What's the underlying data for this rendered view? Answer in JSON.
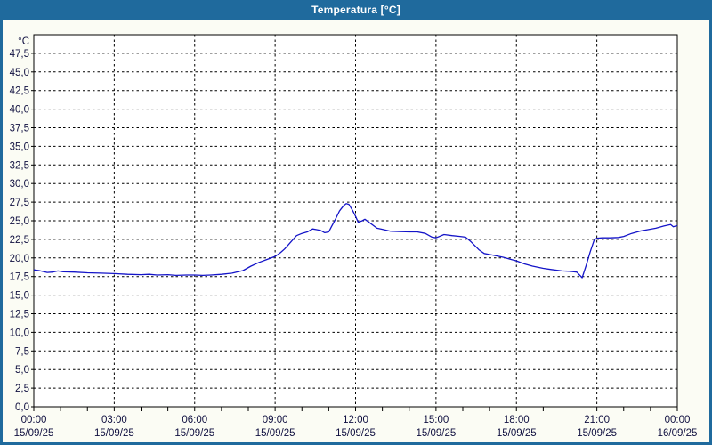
{
  "window": {
    "title": "Temperatura [°C]"
  },
  "colors": {
    "titlebar": "#1f6a9d",
    "frame": "#1f6a9d",
    "background": "#fbfcf4",
    "plot_background": "#ffffff",
    "plot_border": "#000000",
    "gridline": "#000000",
    "axis_text": "#101040",
    "title_text": "#ffffff",
    "series_line": "#1414c8"
  },
  "chart_data": {
    "type": "line",
    "title": "Temperatura [°C]",
    "y_axis": {
      "unit_label": "°C",
      "ylim": [
        0,
        50
      ],
      "tick_step": 2.5,
      "ticks": [
        {
          "value": 0.0,
          "label": "0,0"
        },
        {
          "value": 2.5,
          "label": "2,5"
        },
        {
          "value": 5.0,
          "label": "5,0"
        },
        {
          "value": 7.5,
          "label": "7,5"
        },
        {
          "value": 10.0,
          "label": "10,0"
        },
        {
          "value": 12.5,
          "label": "12,5"
        },
        {
          "value": 15.0,
          "label": "15,0"
        },
        {
          "value": 17.5,
          "label": "17,5"
        },
        {
          "value": 20.0,
          "label": "20,0"
        },
        {
          "value": 22.5,
          "label": "22,5"
        },
        {
          "value": 25.0,
          "label": "25,0"
        },
        {
          "value": 27.5,
          "label": "27,5"
        },
        {
          "value": 30.0,
          "label": "30,0"
        },
        {
          "value": 32.5,
          "label": "32,5"
        },
        {
          "value": 35.0,
          "label": "35,0"
        },
        {
          "value": 37.5,
          "label": "37,5"
        },
        {
          "value": 40.0,
          "label": "40,0"
        },
        {
          "value": 42.5,
          "label": "42,5"
        },
        {
          "value": 45.0,
          "label": "45,0"
        },
        {
          "value": 47.5,
          "label": "47,5"
        }
      ]
    },
    "x_axis": {
      "xlim_hours": [
        0,
        24
      ],
      "minor_tick_hours": 1,
      "major_gridline_hours": 3,
      "ticks": [
        {
          "hour": 0,
          "time": "00:00",
          "date": "15/09/25"
        },
        {
          "hour": 3,
          "time": "03:00",
          "date": "15/09/25"
        },
        {
          "hour": 6,
          "time": "06:00",
          "date": "15/09/25"
        },
        {
          "hour": 9,
          "time": "09:00",
          "date": "15/09/25"
        },
        {
          "hour": 12,
          "time": "12:00",
          "date": "15/09/25"
        },
        {
          "hour": 15,
          "time": "15:00",
          "date": "15/09/25"
        },
        {
          "hour": 18,
          "time": "18:00",
          "date": "15/09/25"
        },
        {
          "hour": 21,
          "time": "21:00",
          "date": "15/09/25"
        },
        {
          "hour": 24,
          "time": "00:00",
          "date": "16/09/25"
        }
      ]
    },
    "grid": {
      "horizontal": "dashed",
      "vertical": "dashed"
    },
    "legend": "none",
    "series": [
      {
        "name": "Temperatura",
        "color": "#1414c8",
        "points_hour_degC": [
          [
            0.0,
            18.4
          ],
          [
            0.2,
            18.3
          ],
          [
            0.5,
            18.05
          ],
          [
            0.7,
            18.1
          ],
          [
            0.9,
            18.25
          ],
          [
            1.1,
            18.15
          ],
          [
            1.5,
            18.1
          ],
          [
            2.0,
            18.0
          ],
          [
            2.5,
            17.95
          ],
          [
            3.0,
            17.9
          ],
          [
            3.5,
            17.8
          ],
          [
            4.0,
            17.75
          ],
          [
            4.3,
            17.8
          ],
          [
            4.6,
            17.7
          ],
          [
            5.0,
            17.75
          ],
          [
            5.3,
            17.65
          ],
          [
            5.7,
            17.7
          ],
          [
            6.0,
            17.7
          ],
          [
            6.3,
            17.65
          ],
          [
            6.6,
            17.7
          ],
          [
            7.0,
            17.8
          ],
          [
            7.4,
            17.95
          ],
          [
            7.8,
            18.3
          ],
          [
            8.1,
            18.9
          ],
          [
            8.4,
            19.4
          ],
          [
            8.7,
            19.8
          ],
          [
            9.0,
            20.2
          ],
          [
            9.2,
            20.7
          ],
          [
            9.35,
            21.2
          ],
          [
            9.5,
            21.8
          ],
          [
            9.65,
            22.4
          ],
          [
            9.8,
            23.0
          ],
          [
            10.0,
            23.3
          ],
          [
            10.2,
            23.5
          ],
          [
            10.4,
            23.9
          ],
          [
            10.55,
            23.8
          ],
          [
            10.7,
            23.7
          ],
          [
            10.85,
            23.4
          ],
          [
            11.0,
            23.5
          ],
          [
            11.1,
            24.2
          ],
          [
            11.25,
            25.2
          ],
          [
            11.4,
            26.3
          ],
          [
            11.55,
            27.0
          ],
          [
            11.65,
            27.3
          ],
          [
            11.75,
            27.2
          ],
          [
            11.9,
            26.3
          ],
          [
            12.0,
            25.6
          ],
          [
            12.1,
            24.8
          ],
          [
            12.25,
            25.0
          ],
          [
            12.35,
            25.2
          ],
          [
            12.5,
            24.8
          ],
          [
            12.65,
            24.4
          ],
          [
            12.8,
            24.0
          ],
          [
            13.0,
            23.85
          ],
          [
            13.3,
            23.6
          ],
          [
            13.6,
            23.55
          ],
          [
            14.0,
            23.5
          ],
          [
            14.3,
            23.5
          ],
          [
            14.6,
            23.3
          ],
          [
            14.85,
            22.8
          ],
          [
            15.0,
            22.7
          ],
          [
            15.3,
            23.15
          ],
          [
            15.6,
            23.0
          ],
          [
            15.9,
            22.9
          ],
          [
            16.1,
            22.8
          ],
          [
            16.3,
            22.2
          ],
          [
            16.6,
            21.1
          ],
          [
            16.8,
            20.6
          ],
          [
            17.1,
            20.4
          ],
          [
            17.5,
            20.1
          ],
          [
            17.8,
            19.8
          ],
          [
            18.0,
            19.6
          ],
          [
            18.3,
            19.2
          ],
          [
            18.6,
            18.9
          ],
          [
            19.0,
            18.6
          ],
          [
            19.3,
            18.45
          ],
          [
            19.7,
            18.25
          ],
          [
            20.0,
            18.2
          ],
          [
            20.25,
            18.1
          ],
          [
            20.45,
            17.35
          ],
          [
            20.6,
            19.0
          ],
          [
            20.75,
            20.8
          ],
          [
            20.9,
            22.4
          ],
          [
            21.0,
            22.65
          ],
          [
            21.2,
            22.7
          ],
          [
            21.5,
            22.7
          ],
          [
            21.8,
            22.75
          ],
          [
            22.0,
            22.9
          ],
          [
            22.3,
            23.3
          ],
          [
            22.6,
            23.6
          ],
          [
            22.9,
            23.8
          ],
          [
            23.2,
            24.0
          ],
          [
            23.5,
            24.3
          ],
          [
            23.75,
            24.5
          ],
          [
            23.85,
            24.2
          ],
          [
            24.0,
            24.35
          ]
        ]
      }
    ]
  }
}
